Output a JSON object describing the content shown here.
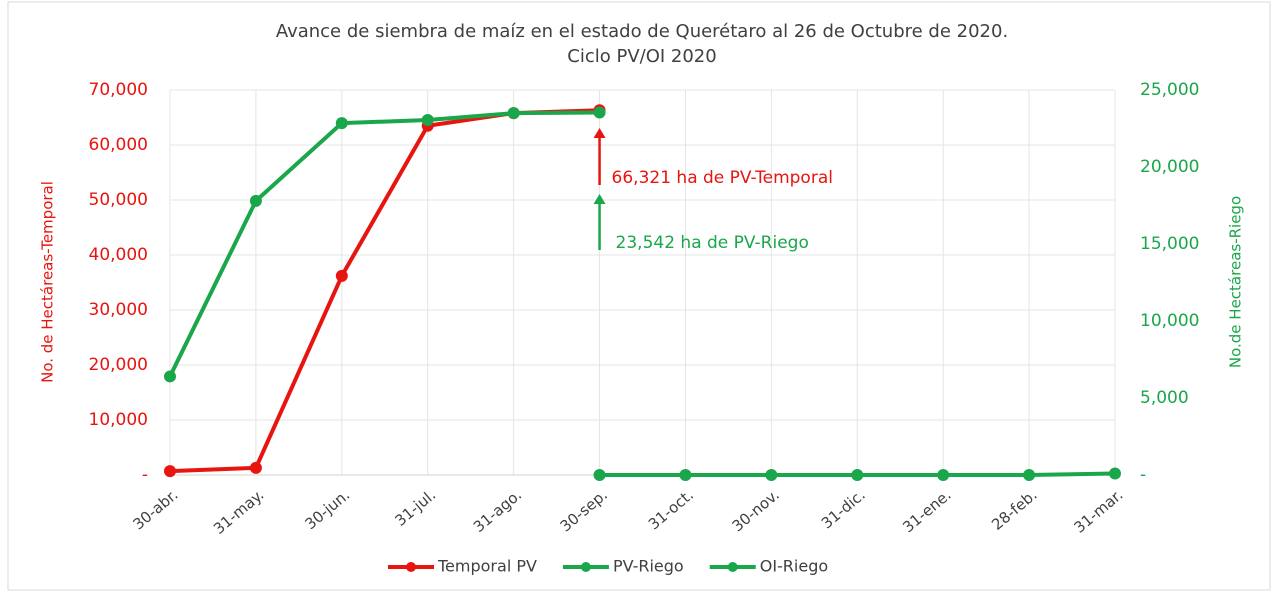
{
  "chart_data": {
    "type": "line",
    "title": [
      "Avance de siembra de maíz en el estado de Querétaro al 26 de Octubre de 2020.",
      "Ciclo PV/OI 2020"
    ],
    "ylabel": "No. de Hectáreas-Temporal",
    "y2label": "No.de Hectáreas-Riego",
    "categories": [
      "30-abr.",
      "31-may.",
      "30-jun.",
      "31-jul.",
      "31-ago.",
      "30-sep.",
      "31-oct.",
      "30-nov.",
      "31-dic.",
      "31-ene.",
      "28-feb.",
      "31-mar."
    ],
    "series": [
      {
        "name": "Temporal PV",
        "color": "#e8140f",
        "axis": "y",
        "values": [
          700,
          1300,
          36200,
          63500,
          65800,
          66321,
          null,
          null,
          null,
          null,
          null,
          null
        ]
      },
      {
        "name": "PV-Riego",
        "color": "#1aa64a",
        "axis": "y2",
        "values": [
          6400,
          17800,
          22850,
          23050,
          23500,
          23542,
          null,
          null,
          null,
          null,
          null,
          null
        ]
      },
      {
        "name": "OI-Riego",
        "color": "#1aa64a",
        "axis": "y2",
        "values": [
          null,
          null,
          null,
          null,
          null,
          0,
          0,
          0,
          0,
          0,
          0,
          100
        ]
      }
    ],
    "ylim": [
      0,
      70000
    ],
    "yticks": [
      {
        "value": 0,
        "label": "-"
      },
      {
        "value": 10000,
        "label": "10,000"
      },
      {
        "value": 20000,
        "label": "20,000"
      },
      {
        "value": 30000,
        "label": "30,000"
      },
      {
        "value": 40000,
        "label": "40,000"
      },
      {
        "value": 50000,
        "label": "50,000"
      },
      {
        "value": 60000,
        "label": "60,000"
      },
      {
        "value": 70000,
        "label": "70,000"
      }
    ],
    "y2lim": [
      0,
      25000
    ],
    "y2ticks": [
      {
        "value": 0,
        "label": "-"
      },
      {
        "value": 5000,
        "label": "5,000"
      },
      {
        "value": 10000,
        "label": "10,000"
      },
      {
        "value": 15000,
        "label": "15,000"
      },
      {
        "value": 20000,
        "label": "20,000"
      },
      {
        "value": 25000,
        "label": "25,000"
      }
    ],
    "annotations": [
      {
        "text": "66,321 ha de PV-Temporal",
        "color": "#e8140f"
      },
      {
        "text": "23,542 ha de PV-Riego",
        "color": "#1aa64a"
      }
    ],
    "grid": true,
    "legend": "bottom"
  }
}
